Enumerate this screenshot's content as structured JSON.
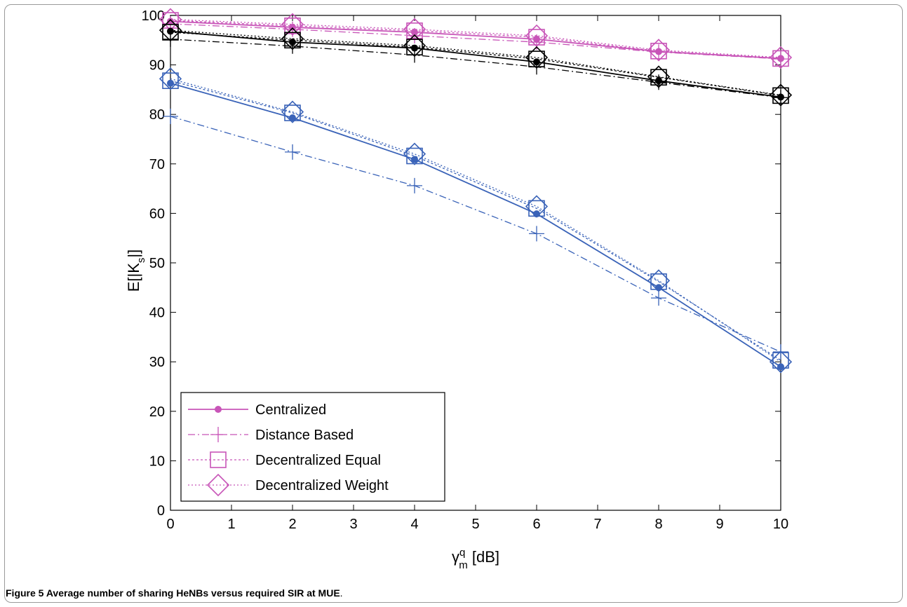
{
  "chart_data": {
    "type": "line",
    "xlabel_main": "γ",
    "xlabel_sup": "q",
    "xlabel_sub": "m",
    "xlabel_rest": " [dB]",
    "ylabel_main": "E[|K",
    "ylabel_sub": "s",
    "ylabel_rest": "|]",
    "xlim": [
      0,
      10
    ],
    "ylim": [
      0,
      100
    ],
    "xticks": [
      "0",
      "1",
      "2",
      "3",
      "4",
      "5",
      "6",
      "7",
      "8",
      "9",
      "10"
    ],
    "yticks": [
      "0",
      "10",
      "20",
      "30",
      "40",
      "50",
      "60",
      "70",
      "80",
      "90",
      "100"
    ],
    "x": [
      0,
      2,
      4,
      6,
      8,
      10
    ],
    "colors": {
      "magenta": "#c855b8",
      "black": "#000000",
      "blue": "#3a63b8"
    },
    "groups": [
      {
        "color": "magenta",
        "series": [
          {
            "style": "centralized",
            "values": [
              98.8,
              97.6,
              96.6,
              95.2,
              92.7,
              91.3
            ]
          },
          {
            "style": "distance",
            "values": [
              98.3,
              97.2,
              95.9,
              94.6,
              92.6,
              91.2
            ]
          },
          {
            "style": "equal",
            "values": [
              99.0,
              97.9,
              96.9,
              95.6,
              92.8,
              91.3
            ]
          },
          {
            "style": "weight",
            "values": [
              99.2,
              98.2,
              97.2,
              95.9,
              93.0,
              91.5
            ]
          }
        ]
      },
      {
        "color": "black",
        "series": [
          {
            "style": "centralized",
            "values": [
              96.8,
              94.6,
              93.4,
              90.6,
              86.8,
              83.5
            ]
          },
          {
            "style": "distance",
            "values": [
              95.2,
              93.8,
              92.0,
              89.6,
              86.5,
              83.4
            ]
          },
          {
            "style": "equal",
            "values": [
              96.6,
              95.0,
              93.6,
              91.2,
              87.5,
              83.8
            ]
          },
          {
            "style": "weight",
            "values": [
              97.0,
              95.3,
              93.9,
              91.5,
              87.6,
              83.9
            ]
          }
        ]
      },
      {
        "color": "blue",
        "series": [
          {
            "style": "centralized",
            "values": [
              86.3,
              79.3,
              70.9,
              59.9,
              45.0,
              29.0
            ]
          },
          {
            "style": "distance",
            "values": [
              79.6,
              72.4,
              65.6,
              55.9,
              42.9,
              32.0
            ]
          },
          {
            "style": "equal",
            "values": [
              86.8,
              80.3,
              71.6,
              61.0,
              46.2,
              30.3
            ]
          },
          {
            "style": "weight",
            "values": [
              87.2,
              80.5,
              72.0,
              61.4,
              46.4,
              30.0
            ]
          }
        ]
      }
    ],
    "legend": {
      "position": "bottom-left",
      "color": "magenta",
      "entries": [
        {
          "style": "centralized",
          "label": "Centralized"
        },
        {
          "style": "distance",
          "label": "Distance Based"
        },
        {
          "style": "equal",
          "label": "Decentralized Equal"
        },
        {
          "style": "weight",
          "label": "Decentralized  Weight"
        }
      ]
    }
  },
  "caption": {
    "label": "Figure 5",
    "text": " Average number of sharing HeNBs versus required SIR at MUE",
    "end": "."
  }
}
